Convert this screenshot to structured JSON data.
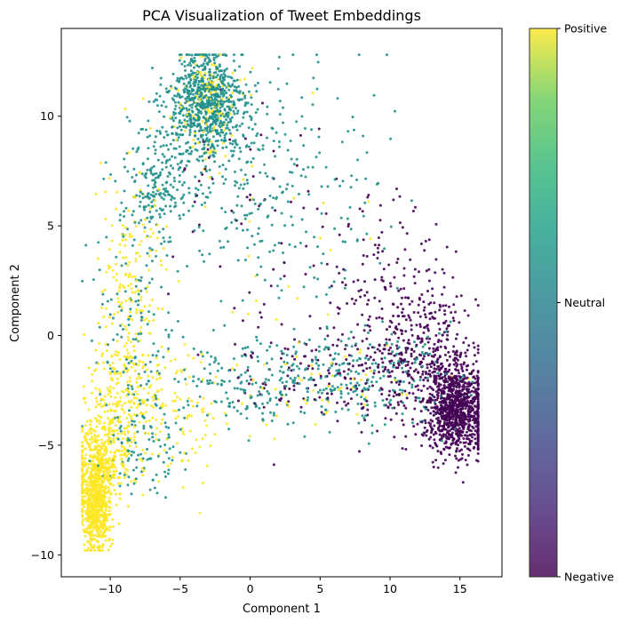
{
  "chart_data": {
    "type": "scatter",
    "title": "PCA Visualization of Tweet Embeddings",
    "xlabel": "Component 1",
    "ylabel": "Component 2",
    "xlim": [
      -13.5,
      18
    ],
    "ylim": [
      -11,
      14
    ],
    "x_ticks": [
      -10,
      -5,
      0,
      5,
      10,
      15
    ],
    "y_ticks": [
      -10,
      -5,
      0,
      5,
      10
    ],
    "x_tick_labels": [
      "−10",
      "−5",
      "0",
      "5",
      "10",
      "15"
    ],
    "y_tick_labels": [
      "−10",
      "−5",
      "0",
      "5",
      "10"
    ],
    "grid": false,
    "legend": "colorbar-right",
    "colormap": "viridis",
    "colorbar": {
      "ticks": [
        "Negative",
        "Neutral",
        "Positive"
      ],
      "colors": [
        "#440154",
        "#21918c",
        "#fde725"
      ]
    },
    "series": [
      {
        "name": "Positive",
        "color": "#fde725",
        "clusters": [
          {
            "cx": -11.0,
            "cy": -7.6,
            "sx": 0.55,
            "sy": 1.1,
            "n": 650
          },
          {
            "cx": -10.5,
            "cy": -5.5,
            "sx": 1.0,
            "sy": 1.0,
            "n": 350
          },
          {
            "cx": -9.0,
            "cy": -2.5,
            "sx": 1.3,
            "sy": 1.5,
            "n": 220
          },
          {
            "cx": -8.5,
            "cy": 2.5,
            "sx": 1.3,
            "sy": 2.5,
            "n": 160
          },
          {
            "cx": -5.0,
            "cy": -3.5,
            "sx": 2.5,
            "sy": 1.5,
            "n": 120
          },
          {
            "cx": -3.0,
            "cy": 10.5,
            "sx": 1.0,
            "sy": 1.2,
            "n": 140
          },
          {
            "cx": 5.0,
            "cy": -2.3,
            "sx": 4.0,
            "sy": 1.0,
            "n": 50
          },
          {
            "cx": 2.0,
            "cy": 4.0,
            "sx": 4.0,
            "sy": 3.0,
            "n": 25
          }
        ]
      },
      {
        "name": "Neutral",
        "color": "#21918c",
        "clusters": [
          {
            "cx": -3.2,
            "cy": 10.6,
            "sx": 1.4,
            "sy": 1.2,
            "n": 750
          },
          {
            "cx": -6.5,
            "cy": 7.0,
            "sx": 1.2,
            "sy": 1.5,
            "n": 220
          },
          {
            "cx": -1.0,
            "cy": 8.0,
            "sx": 2.5,
            "sy": 2.5,
            "n": 200
          },
          {
            "cx": 4.0,
            "cy": 6.0,
            "sx": 3.0,
            "sy": 3.0,
            "n": 120
          },
          {
            "cx": 4.0,
            "cy": -2.0,
            "sx": 5.0,
            "sy": 1.0,
            "n": 380
          },
          {
            "cx": -8.0,
            "cy": 0.0,
            "sx": 1.5,
            "sy": 3.0,
            "n": 140
          },
          {
            "cx": -8.0,
            "cy": -5.0,
            "sx": 1.5,
            "sy": 1.0,
            "n": 80
          },
          {
            "cx": 12.0,
            "cy": -2.0,
            "sx": 2.0,
            "sy": 1.5,
            "n": 40
          }
        ]
      },
      {
        "name": "Negative",
        "color": "#440154",
        "clusters": [
          {
            "cx": 14.8,
            "cy": -3.3,
            "sx": 1.1,
            "sy": 1.0,
            "n": 950
          },
          {
            "cx": 12.5,
            "cy": -1.0,
            "sx": 1.8,
            "sy": 1.8,
            "n": 350
          },
          {
            "cx": 9.5,
            "cy": 2.0,
            "sx": 2.0,
            "sy": 2.0,
            "n": 120
          },
          {
            "cx": 6.0,
            "cy": -2.0,
            "sx": 3.5,
            "sy": 1.0,
            "n": 140
          },
          {
            "cx": 3.0,
            "cy": 3.0,
            "sx": 4.0,
            "sy": 3.0,
            "n": 60
          },
          {
            "cx": 0.0,
            "cy": 8.0,
            "sx": 3.0,
            "sy": 2.5,
            "n": 30
          }
        ]
      }
    ]
  }
}
